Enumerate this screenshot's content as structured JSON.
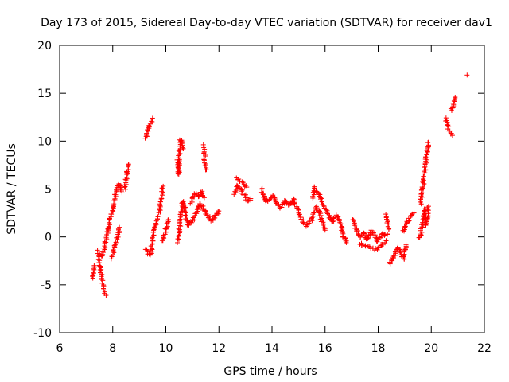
{
  "chart_data": {
    "type": "scatter",
    "title": "Day 173 of 2015, Sidereal Day-to-day VTEC variation (SDTVAR) for receiver dav1",
    "xlabel": "GPS time / hours",
    "ylabel": "SDTVAR / TECUs",
    "xlim": [
      6,
      22
    ],
    "ylim": [
      -10,
      20
    ],
    "xticks": [
      6,
      8,
      10,
      12,
      14,
      16,
      18,
      20,
      22
    ],
    "yticks": [
      -10,
      -5,
      0,
      5,
      10,
      15,
      20
    ],
    "marker": "+",
    "color": "#ff0000",
    "grid": false,
    "series": [
      {
        "name": "dav1",
        "segments": [
          [
            [
              7.25,
              -4.3
            ],
            [
              7.28,
              -3.8
            ],
            [
              7.3,
              -3.0
            ]
          ],
          [
            [
              7.45,
              -1.5
            ],
            [
              7.5,
              -2.5
            ],
            [
              7.55,
              -3.5
            ],
            [
              7.6,
              -4.5
            ],
            [
              7.65,
              -5.3
            ],
            [
              7.7,
              -5.8
            ],
            [
              7.75,
              -6.1
            ]
          ],
          [
            [
              7.6,
              -2.0
            ],
            [
              7.7,
              -1.0
            ],
            [
              7.8,
              0.3
            ],
            [
              7.9,
              1.7
            ],
            [
              8.0,
              3.0
            ],
            [
              8.05,
              3.8
            ],
            [
              8.1,
              4.4
            ],
            [
              8.15,
              4.9
            ],
            [
              8.2,
              5.3
            ],
            [
              8.25,
              5.6
            ],
            [
              8.3,
              5.1
            ],
            [
              8.35,
              4.6
            ]
          ],
          [
            [
              7.95,
              -2.3
            ],
            [
              8.0,
              -2.0
            ],
            [
              8.05,
              -1.2
            ],
            [
              8.1,
              -0.6
            ],
            [
              8.15,
              -0.3
            ],
            [
              8.2,
              0.1
            ],
            [
              8.25,
              1.0
            ]
          ],
          [
            [
              8.45,
              5.0
            ],
            [
              8.5,
              5.8
            ],
            [
              8.55,
              6.8
            ],
            [
              8.6,
              7.6
            ]
          ],
          [
            [
              9.25,
              -1.3
            ],
            [
              9.3,
              -1.5
            ],
            [
              9.35,
              -1.8
            ],
            [
              9.4,
              -2.0
            ],
            [
              9.45,
              -1.5
            ],
            [
              9.5,
              -0.5
            ],
            [
              9.55,
              0.3
            ],
            [
              9.6,
              1.0
            ],
            [
              9.65,
              1.6
            ],
            [
              9.7,
              2.1
            ]
          ],
          [
            [
              9.25,
              10.3
            ],
            [
              9.3,
              10.8
            ],
            [
              9.35,
              11.3
            ],
            [
              9.4,
              11.7
            ],
            [
              9.45,
              12.1
            ],
            [
              9.5,
              12.4
            ]
          ],
          [
            [
              9.75,
              2.5
            ],
            [
              9.8,
              3.3
            ],
            [
              9.85,
              4.2
            ],
            [
              9.9,
              5.3
            ]
          ],
          [
            [
              9.9,
              -0.5
            ],
            [
              9.95,
              0.2
            ],
            [
              10.0,
              0.8
            ],
            [
              10.05,
              1.3
            ],
            [
              10.1,
              1.8
            ]
          ],
          [
            [
              10.45,
              -0.5
            ],
            [
              10.5,
              0.5
            ],
            [
              10.55,
              1.7
            ],
            [
              10.6,
              2.8
            ],
            [
              10.65,
              3.8
            ],
            [
              10.7,
              3.1
            ],
            [
              10.75,
              2.2
            ],
            [
              10.8,
              1.6
            ],
            [
              10.85,
              1.2
            ],
            [
              10.9,
              1.5
            ]
          ],
          [
            [
              10.45,
              8.0
            ],
            [
              10.48,
              6.5
            ],
            [
              10.52,
              9.5
            ],
            [
              10.55,
              10.2
            ],
            [
              10.6,
              9.8
            ],
            [
              10.65,
              9.2
            ]
          ],
          [
            [
              10.9,
              1.3
            ],
            [
              11.0,
              1.6
            ],
            [
              11.1,
              2.2
            ],
            [
              11.2,
              2.8
            ],
            [
              11.3,
              3.5
            ],
            [
              11.4,
              3.0
            ],
            [
              11.5,
              2.6
            ],
            [
              11.6,
              2.1
            ],
            [
              11.7,
              1.7
            ],
            [
              11.8,
              1.9
            ],
            [
              11.9,
              2.3
            ],
            [
              12.0,
              2.7
            ]
          ],
          [
            [
              10.95,
              3.6
            ],
            [
              11.05,
              4.3
            ],
            [
              11.15,
              4.6
            ],
            [
              11.25,
              4.2
            ],
            [
              11.35,
              4.8
            ],
            [
              11.45,
              4.1
            ]
          ],
          [
            [
              11.4,
              9.5
            ],
            [
              11.45,
              8.6
            ],
            [
              11.48,
              7.8
            ],
            [
              11.5,
              7.0
            ]
          ],
          [
            [
              12.6,
              4.5
            ],
            [
              12.7,
              5.4
            ],
            [
              12.8,
              5.0
            ],
            [
              12.9,
              4.6
            ],
            [
              13.0,
              4.2
            ],
            [
              13.1,
              3.7
            ],
            [
              13.2,
              4.0
            ]
          ],
          [
            [
              12.65,
              6.1
            ],
            [
              12.85,
              5.7
            ],
            [
              13.05,
              5.2
            ]
          ],
          [
            [
              13.6,
              5.0
            ],
            [
              13.7,
              4.2
            ],
            [
              13.8,
              3.6
            ],
            [
              13.9,
              3.9
            ],
            [
              14.0,
              4.3
            ],
            [
              14.1,
              3.9
            ],
            [
              14.2,
              3.4
            ],
            [
              14.3,
              3.0
            ],
            [
              14.4,
              3.4
            ],
            [
              14.5,
              3.8
            ],
            [
              14.6,
              3.3
            ],
            [
              14.7,
              3.5
            ],
            [
              14.8,
              3.9
            ],
            [
              14.9,
              3.2
            ],
            [
              15.0,
              2.8
            ]
          ],
          [
            [
              15.0,
              2.6
            ],
            [
              15.1,
              2.0
            ],
            [
              15.2,
              1.5
            ],
            [
              15.3,
              1.2
            ],
            [
              15.4,
              1.4
            ],
            [
              15.5,
              1.8
            ],
            [
              15.6,
              2.6
            ],
            [
              15.7,
              3.1
            ],
            [
              15.8,
              2.5
            ],
            [
              15.9,
              1.4
            ],
            [
              16.0,
              0.7
            ]
          ],
          [
            [
              15.55,
              4.0
            ],
            [
              15.6,
              5.2
            ],
            [
              15.7,
              4.6
            ],
            [
              15.8,
              4.2
            ],
            [
              15.9,
              3.6
            ],
            [
              16.0,
              3.0
            ],
            [
              16.1,
              2.4
            ],
            [
              16.2,
              2.0
            ],
            [
              16.3,
              1.6
            ],
            [
              16.4,
              2.2
            ],
            [
              16.5,
              2.0
            ],
            [
              16.6,
              1.2
            ],
            [
              16.7,
              0.0
            ],
            [
              16.8,
              -0.6
            ]
          ],
          [
            [
              17.05,
              1.8
            ],
            [
              17.15,
              1.0
            ],
            [
              17.25,
              0.4
            ],
            [
              17.35,
              0.0
            ],
            [
              17.45,
              0.5
            ],
            [
              17.55,
              -0.3
            ],
            [
              17.65,
              -0.1
            ],
            [
              17.75,
              0.6
            ],
            [
              17.85,
              0.2
            ],
            [
              17.95,
              -0.5
            ],
            [
              18.05,
              -0.1
            ],
            [
              18.15,
              0.4
            ],
            [
              18.25,
              0.1
            ],
            [
              18.35,
              0.3
            ]
          ],
          [
            [
              17.3,
              -0.7
            ],
            [
              17.5,
              -0.9
            ],
            [
              17.7,
              -1.1
            ],
            [
              17.9,
              -1.3
            ],
            [
              18.1,
              -1.0
            ],
            [
              18.3,
              -0.4
            ]
          ],
          [
            [
              18.3,
              2.3
            ],
            [
              18.35,
              1.5
            ],
            [
              18.4,
              0.8
            ]
          ],
          [
            [
              18.45,
              -2.8
            ],
            [
              18.55,
              -2.2
            ],
            [
              18.65,
              -1.6
            ],
            [
              18.75,
              -1.0
            ],
            [
              18.85,
              -1.6
            ],
            [
              18.95,
              -2.3
            ],
            [
              19.05,
              -0.8
            ]
          ],
          [
            [
              18.95,
              0.5
            ],
            [
              19.05,
              1.2
            ],
            [
              19.15,
              1.8
            ],
            [
              19.25,
              2.3
            ],
            [
              19.35,
              2.5
            ]
          ],
          [
            [
              19.55,
              -0.1
            ],
            [
              19.65,
              0.9
            ],
            [
              19.7,
              1.8
            ],
            [
              19.75,
              3.0
            ],
            [
              19.8,
              1.2
            ],
            [
              19.85,
              2.0
            ],
            [
              19.9,
              3.2
            ]
          ],
          [
            [
              19.6,
              3.5
            ],
            [
              19.65,
              4.5
            ],
            [
              19.7,
              5.5
            ],
            [
              19.75,
              6.8
            ],
            [
              19.8,
              8.0
            ],
            [
              19.85,
              9.0
            ],
            [
              19.9,
              9.9
            ]
          ],
          [
            [
              20.55,
              12.3
            ],
            [
              20.6,
              11.8
            ],
            [
              20.65,
              11.3
            ],
            [
              20.7,
              11.0
            ],
            [
              20.75,
              10.8
            ],
            [
              20.8,
              10.6
            ]
          ],
          [
            [
              20.75,
              13.2
            ],
            [
              20.8,
              13.6
            ],
            [
              20.85,
              14.2
            ],
            [
              20.9,
              14.6
            ]
          ],
          [
            [
              21.35,
              16.9
            ]
          ]
        ]
      }
    ]
  }
}
